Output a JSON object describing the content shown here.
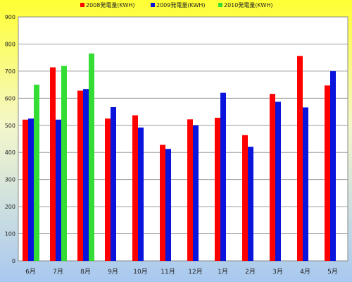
{
  "chart_data": {
    "type": "bar",
    "categories": [
      "6月",
      "7月",
      "8月",
      "9月",
      "10月",
      "11月",
      "12月",
      "1月",
      "2月",
      "3月",
      "4月",
      "5月"
    ],
    "series": [
      {
        "name": "2008発電量(KWH)",
        "color": "#ff0000",
        "values": [
          521,
          714,
          628,
          525,
          537,
          428,
          522,
          528,
          464,
          616,
          756,
          647
        ]
      },
      {
        "name": "2009発電量(KWH)",
        "color": "#0a14dc",
        "values": [
          525,
          521,
          634,
          567,
          492,
          413,
          500,
          620,
          421,
          587,
          566,
          700
        ]
      },
      {
        "name": "2010発電量(KWH)",
        "color": "#33dd33",
        "values": [
          650,
          719,
          765,
          null,
          null,
          null,
          null,
          null,
          null,
          null,
          null,
          null
        ]
      }
    ],
    "ylim": [
      0,
      900
    ],
    "yticks": [
      "0",
      "100",
      "200",
      "300",
      "400",
      "500",
      "600",
      "700",
      "800",
      "900"
    ],
    "legend_position": "top",
    "grid": true,
    "colors": {
      "gradient_top": "#ffff33",
      "gradient_bottom": "#a8c8f0",
      "plot_background": "#ffffff",
      "gridline": "#9a9a9a"
    }
  }
}
